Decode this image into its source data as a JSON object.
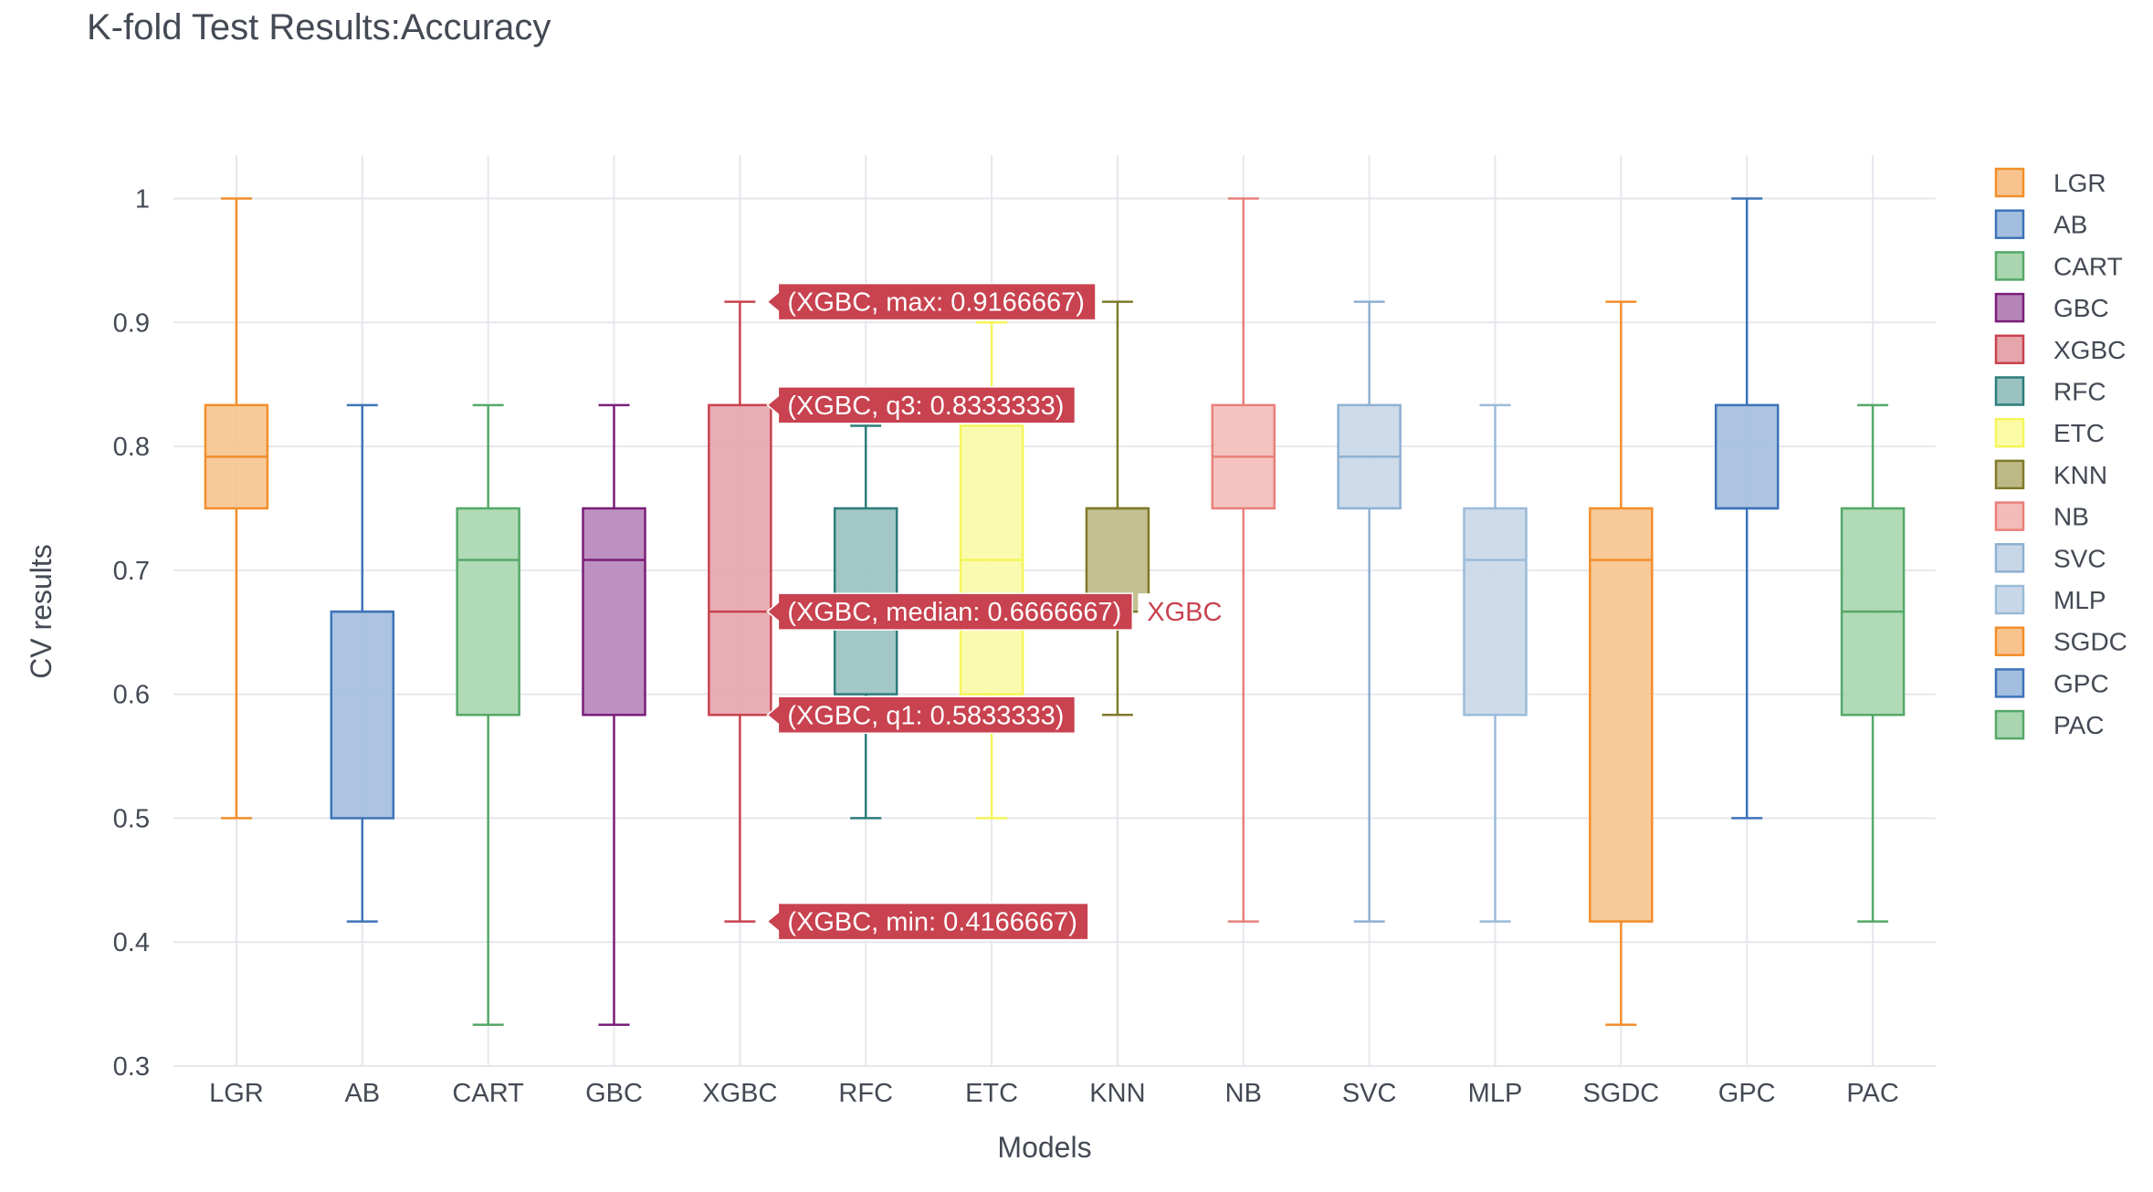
{
  "chart_data": {
    "type": "box",
    "title": "K-fold Test Results:Accuracy",
    "xlabel": "Models",
    "ylabel": "CV results",
    "ylim": [
      0.3,
      1.035
    ],
    "yticks": [
      0.3,
      0.4,
      0.5,
      0.6,
      0.7,
      0.8,
      0.9,
      1
    ],
    "ytick_labels": [
      "0.3",
      "0.4",
      "0.5",
      "0.6",
      "0.7",
      "0.8",
      "0.9",
      "1"
    ],
    "grid": true,
    "legend_position": "right",
    "series": [
      {
        "name": "LGR",
        "color": "#f28e2b",
        "fill": "#f7c48f",
        "min": 0.5,
        "q1": 0.75,
        "median": 0.7916667,
        "q3": 0.8333333,
        "max": 1.0
      },
      {
        "name": "AB",
        "color": "#3d73b8",
        "fill": "#a3bedf",
        "min": 0.4166667,
        "q1": 0.5,
        "median": 0.6666667,
        "q3": 0.6666667,
        "max": 0.8333333
      },
      {
        "name": "CART",
        "color": "#55a868",
        "fill": "#a9d6af",
        "min": 0.3333333,
        "q1": 0.5833333,
        "median": 0.7083333,
        "q3": 0.75,
        "max": 0.8333333
      },
      {
        "name": "GBC",
        "color": "#7b1e7a",
        "fill": "#b685b8",
        "min": 0.3333333,
        "q1": 0.5833333,
        "median": 0.7083333,
        "q3": 0.75,
        "max": 0.8333333
      },
      {
        "name": "XGBC",
        "color": "#c8424f",
        "fill": "#e6a5ab",
        "min": 0.4166667,
        "q1": 0.5833333,
        "median": 0.6666667,
        "q3": 0.8333333,
        "max": 0.9166667
      },
      {
        "name": "RFC",
        "color": "#2d7d7a",
        "fill": "#99c2c0",
        "min": 0.5,
        "q1": 0.6,
        "median": 0.6666667,
        "q3": 0.75,
        "max": 0.8166667
      },
      {
        "name": "ETC",
        "color": "#f5f55a",
        "fill": "#fbfba6",
        "min": 0.5,
        "q1": 0.6,
        "median": 0.7083333,
        "q3": 0.8166667,
        "max": 0.9
      },
      {
        "name": "KNN",
        "color": "#807a2a",
        "fill": "#bdb986",
        "min": 0.5833333,
        "q1": 0.6666667,
        "median": 0.75,
        "q3": 0.75,
        "max": 0.9166667
      },
      {
        "name": "NB",
        "color": "#e8807a",
        "fill": "#f4bcb8",
        "min": 0.4166667,
        "q1": 0.75,
        "median": 0.7916667,
        "q3": 0.8333333,
        "max": 1.0
      },
      {
        "name": "SVC",
        "color": "#8eb0d2",
        "fill": "#c8d7e8",
        "min": 0.4166667,
        "q1": 0.75,
        "median": 0.7916667,
        "q3": 0.8333333,
        "max": 0.9166667
      },
      {
        "name": "MLP",
        "color": "#9bbbd8",
        "fill": "#c8d7e8",
        "min": 0.4166667,
        "q1": 0.5833333,
        "median": 0.7083333,
        "q3": 0.75,
        "max": 0.8333333
      },
      {
        "name": "SGDC",
        "color": "#f28e2b",
        "fill": "#f7c48f",
        "min": 0.3333333,
        "q1": 0.4166667,
        "median": 0.7083333,
        "q3": 0.75,
        "max": 0.9166667
      },
      {
        "name": "GPC",
        "color": "#3d73b8",
        "fill": "#a3bedf",
        "min": 0.5,
        "q1": 0.75,
        "median": 0.75,
        "q3": 0.8333333,
        "max": 1.0
      },
      {
        "name": "PAC",
        "color": "#55a868",
        "fill": "#a9d6af",
        "min": 0.4166667,
        "q1": 0.5833333,
        "median": 0.6666667,
        "q3": 0.75,
        "max": 0.8333333
      }
    ],
    "hover": {
      "series": "XGBC",
      "label_color": "#c8424f",
      "labels": [
        {
          "stat": "max",
          "text": "(XGBC, max: 0.9166667)",
          "value": 0.9166667
        },
        {
          "stat": "q3",
          "text": "(XGBC, q3: 0.8333333)",
          "value": 0.8333333
        },
        {
          "stat": "median",
          "text": "(XGBC, median: 0.6666667)",
          "value": 0.6666667
        },
        {
          "stat": "q1",
          "text": "(XGBC, q1: 0.5833333)",
          "value": 0.5833333
        },
        {
          "stat": "min",
          "text": "(XGBC, min: 0.4166667)",
          "value": 0.4166667
        }
      ],
      "trace_label": "XGBC"
    }
  }
}
